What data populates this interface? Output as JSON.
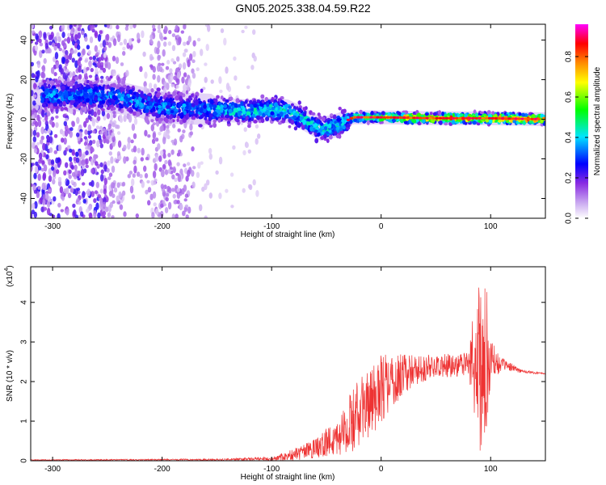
{
  "title": "GN05.2025.338.04.59.R22",
  "spectrogram": {
    "type": "heatmap",
    "xlabel": "Height of straight line (km)",
    "ylabel": "Frequency (Hz)",
    "xlim": [
      -320,
      150
    ],
    "ylim": [
      -50,
      48
    ],
    "xticks": [
      -300,
      -200,
      -100,
      0,
      100
    ],
    "yticks": [
      -40,
      -20,
      0,
      20,
      40
    ],
    "colorbar": {
      "label": "Normalized spectral amplitude",
      "range": [
        0,
        0.96
      ],
      "ticks": [
        0.0,
        0.2,
        0.4,
        0.6,
        0.8
      ],
      "stops": [
        "#ffffff",
        "#8a2be2",
        "#0000ff",
        "#00e5ff",
        "#00ff00",
        "#ffff00",
        "#ff8c00",
        "#ff0000",
        "#ff00ff"
      ]
    },
    "ridge": [
      {
        "x": -300,
        "f": 12
      },
      {
        "x": -260,
        "f": 12
      },
      {
        "x": -230,
        "f": 10
      },
      {
        "x": -200,
        "f": 6
      },
      {
        "x": -160,
        "f": 5
      },
      {
        "x": -120,
        "f": 4
      },
      {
        "x": -100,
        "f": 5
      },
      {
        "x": -85,
        "f": 4
      },
      {
        "x": -70,
        "f": 0
      },
      {
        "x": -55,
        "f": -5
      },
      {
        "x": -40,
        "f": -3
      },
      {
        "x": -25,
        "f": 1
      },
      {
        "x": 0,
        "f": 1
      },
      {
        "x": 50,
        "f": 0.5
      },
      {
        "x": 100,
        "f": 0.5
      },
      {
        "x": 150,
        "f": 0
      }
    ]
  },
  "snr": {
    "type": "line",
    "xlabel": "Height of straight line (km)",
    "ylabel": "SNR (10 * v/v)",
    "scale_label": "(x10",
    "scale_exp": "4",
    "xlim": [
      -320,
      150
    ],
    "ylim": [
      0,
      4.9
    ],
    "xticks": [
      -300,
      -200,
      -100,
      0,
      100
    ],
    "yticks": [
      0,
      1,
      2,
      3,
      4
    ],
    "color": "#ee3333",
    "envelope": [
      {
        "x": -320,
        "mean": 0.02,
        "amp": 0.01
      },
      {
        "x": -150,
        "mean": 0.03,
        "amp": 0.02
      },
      {
        "x": -100,
        "mean": 0.05,
        "amp": 0.05
      },
      {
        "x": -80,
        "mean": 0.15,
        "amp": 0.15
      },
      {
        "x": -60,
        "mean": 0.3,
        "amp": 0.25
      },
      {
        "x": -40,
        "mean": 0.6,
        "amp": 0.5
      },
      {
        "x": -20,
        "mean": 1.2,
        "amp": 0.9
      },
      {
        "x": 0,
        "mean": 1.8,
        "amp": 0.9
      },
      {
        "x": 20,
        "mean": 2.2,
        "amp": 0.5
      },
      {
        "x": 40,
        "mean": 2.35,
        "amp": 0.35
      },
      {
        "x": 60,
        "mean": 2.4,
        "amp": 0.3
      },
      {
        "x": 80,
        "mean": 2.45,
        "amp": 0.3
      },
      {
        "x": 85,
        "mean": 2.5,
        "amp": 1.5
      },
      {
        "x": 90,
        "mean": 2.4,
        "amp": 2.3
      },
      {
        "x": 95,
        "mean": 2.5,
        "amp": 2.3
      },
      {
        "x": 100,
        "mean": 2.5,
        "amp": 0.6
      },
      {
        "x": 110,
        "mean": 2.45,
        "amp": 0.15
      },
      {
        "x": 130,
        "mean": 2.25,
        "amp": 0.04
      },
      {
        "x": 150,
        "mean": 2.2,
        "amp": 0.02
      }
    ]
  }
}
